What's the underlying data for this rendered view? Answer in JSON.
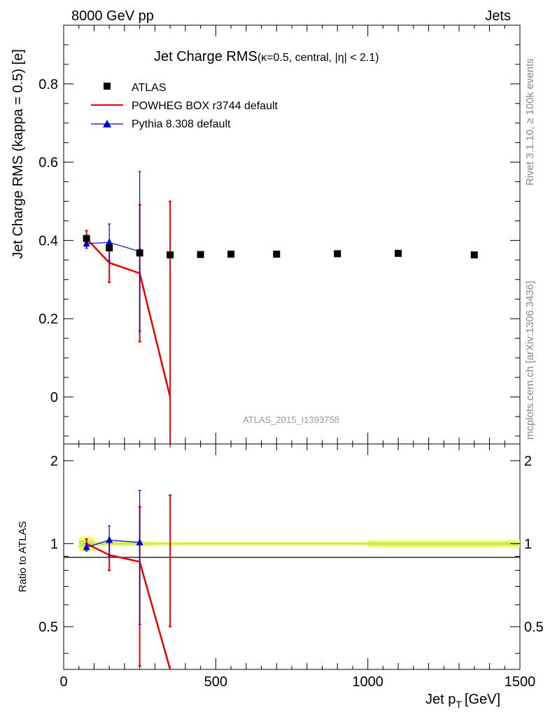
{
  "header": {
    "left": "8000 GeV pp",
    "right": "Jets"
  },
  "side_labels": {
    "rivet": "Rivet 3.1.10, ≥ 100k events",
    "mcplots": "mcplots.cern.ch [arXiv:1306.3436]"
  },
  "watermark": "ATLAS_2015_I1393758",
  "chart_data": [
    {
      "type": "scatter",
      "title_main": "Jet Charge RMS",
      "title_sub": "(κ=0.5, central, |η| < 2.1)",
      "xlabel": "Jet p",
      "xlabel_sub": "T",
      "xlabel_unit": "[GeV]",
      "ylabel": "Jet Charge RMS (kappa = 0.5) [e]",
      "xlim": [
        0,
        1500
      ],
      "ylim": [
        -0.12,
        0.95
      ],
      "xticks": [
        "0",
        "500",
        "1000",
        "1500"
      ],
      "xtick_values": [
        0,
        500,
        1000,
        1500
      ],
      "yticks": [
        "0",
        "0.2",
        "0.4",
        "0.6",
        "0.8"
      ],
      "ytick_values": [
        0,
        0.2,
        0.4,
        0.6,
        0.8
      ],
      "legend": [
        {
          "label": "ATLAS",
          "color": "#000000",
          "marker": "square"
        },
        {
          "label": "POWHEG BOX r3744 default",
          "color": "#ee0000",
          "marker": "line"
        },
        {
          "label": "Pythia 8.308 default",
          "color": "#0000cc",
          "marker": "triangle"
        }
      ],
      "series": [
        {
          "name": "ATLAS",
          "color": "#000000",
          "x": [
            75,
            150,
            250,
            350,
            450,
            550,
            700,
            900,
            1100,
            1350
          ],
          "y": [
            0.405,
            0.381,
            0.368,
            0.363,
            0.364,
            0.365,
            0.365,
            0.366,
            0.367,
            0.363
          ]
        },
        {
          "name": "POWHEG BOX r3744 default",
          "color": "#ee0000",
          "x": [
            75,
            150,
            250,
            350
          ],
          "y": [
            0.405,
            0.343,
            0.316,
            0.0
          ],
          "err": [
            0.02,
            0.05,
            0.175,
            0.5
          ]
        },
        {
          "name": "Pythia 8.308 default",
          "color": "#0000cc",
          "x": [
            75,
            150,
            250
          ],
          "y": [
            0.392,
            0.395,
            0.372
          ],
          "err": [
            0.012,
            0.047,
            0.204
          ]
        }
      ]
    },
    {
      "type": "scatter",
      "ylabel": "Ratio to ATLAS",
      "xlim": [
        0,
        1500
      ],
      "ylim": [
        0.35,
        2.3
      ],
      "log_y": true,
      "yticks": [
        "0.5",
        "1",
        "2"
      ],
      "ytick_values": [
        0.5,
        1,
        2
      ],
      "series": [
        {
          "name": "POWHEG BOX r3744 default",
          "color": "#ee0000",
          "x": [
            75,
            150,
            250,
            350
          ],
          "y": [
            1.0,
            0.91,
            0.86,
            0.0
          ],
          "err_low": [
            0.04,
            0.11,
            0.5,
            0.5
          ],
          "err_high": [
            0.04,
            0.11,
            0.5,
            0.5
          ]
        },
        {
          "name": "Pythia 8.308 default",
          "color": "#0000cc",
          "x": [
            75,
            150,
            250
          ],
          "y": [
            0.97,
            1.03,
            1.01
          ],
          "err_low": [
            0.03,
            0.13,
            0.5
          ],
          "err_high": [
            0.03,
            0.13,
            0.55
          ]
        }
      ]
    }
  ]
}
